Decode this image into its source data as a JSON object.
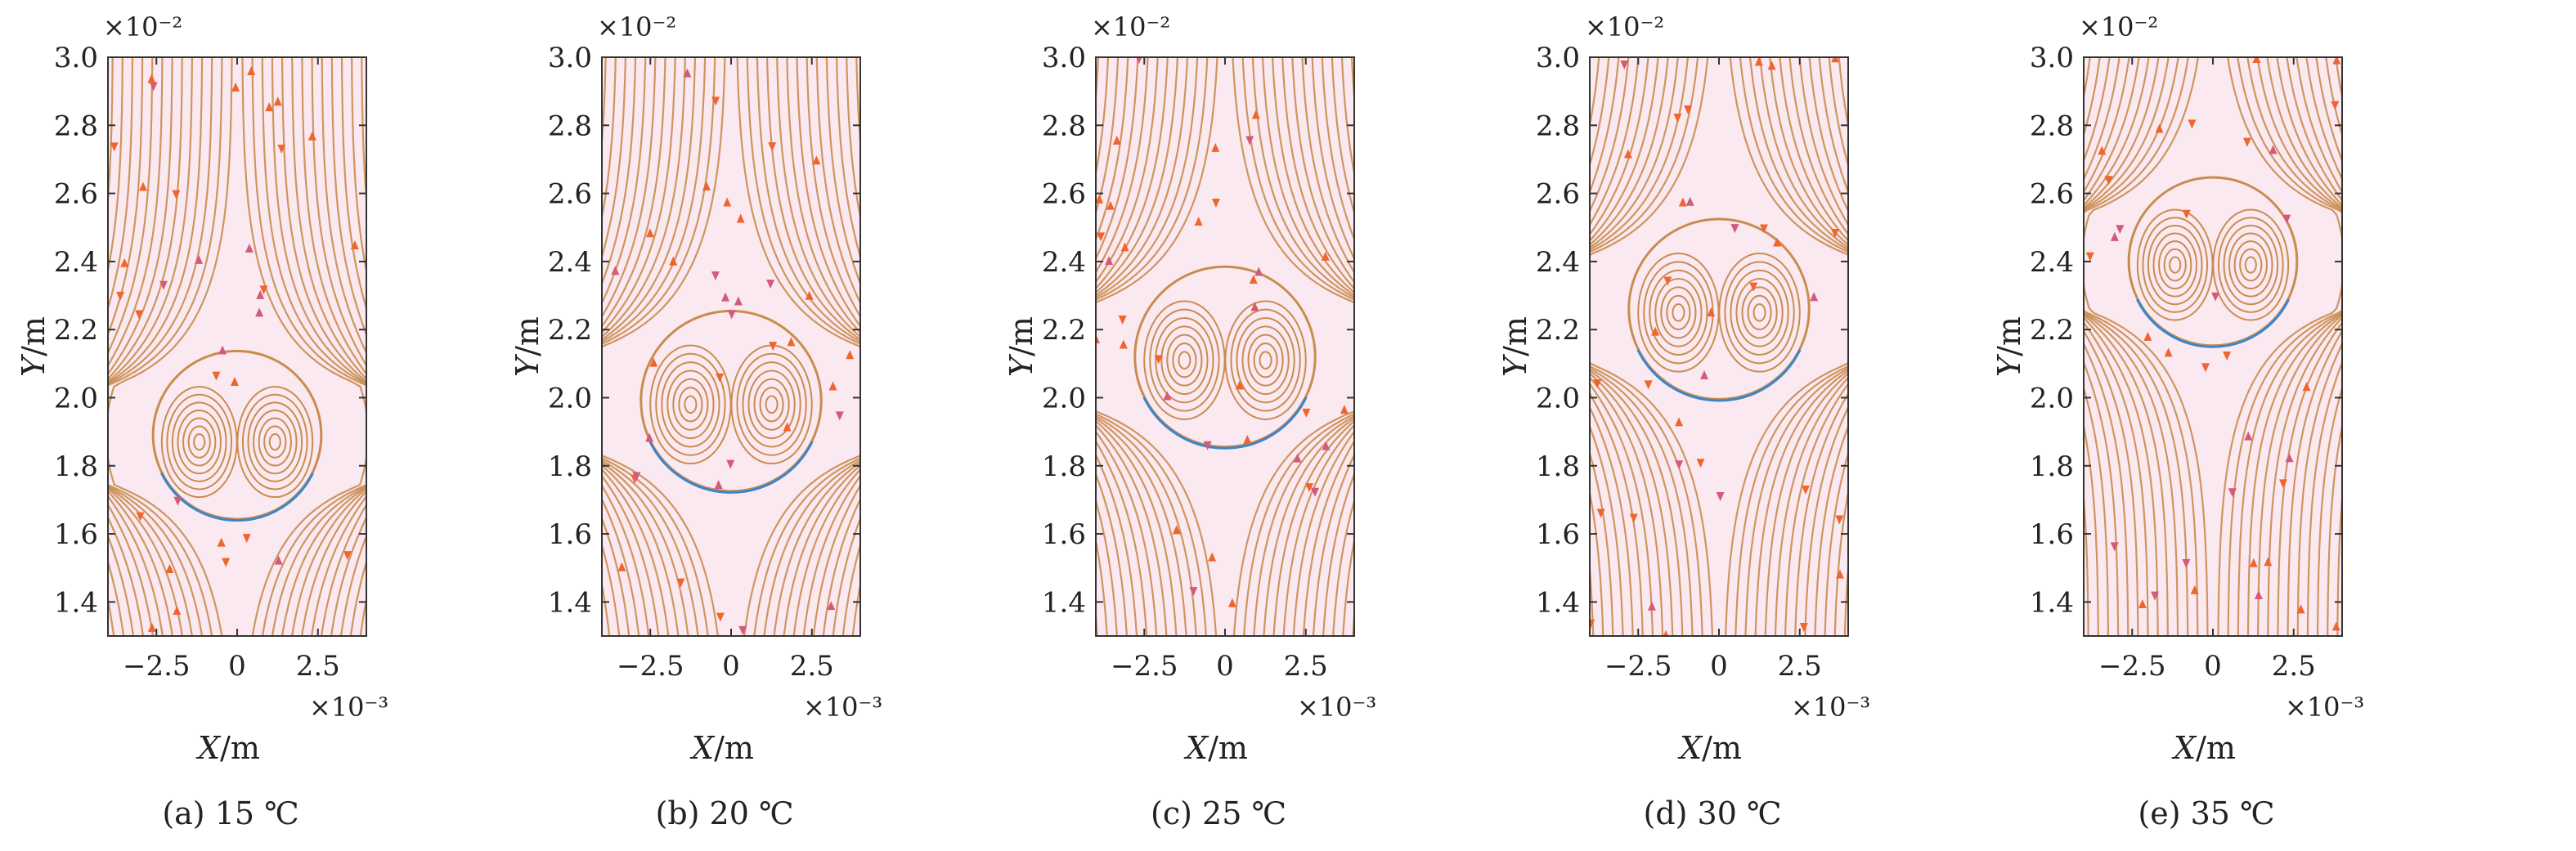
{
  "figure": {
    "panels_count": 5,
    "colors": {
      "streamline": "#c98c4f",
      "arrow": "#f0642e",
      "arrow_alt": "#d45a7a",
      "bubble_edge": "#3a86c8",
      "axis": "#333333",
      "background": "#fbe9f1"
    }
  },
  "chart_data": [
    {
      "type": "streamline",
      "caption": "(a) 15 ℃",
      "xlabel_var": "X",
      "xlabel_unit": "/m",
      "ylabel_var": "Y",
      "ylabel_unit": "/m",
      "x_multiplier": "×10⁻³",
      "y_multiplier": "×10⁻²",
      "xlim": [
        -4.0,
        4.0
      ],
      "ylim": [
        1.3,
        3.0
      ],
      "xticks": [
        -2.5,
        0,
        2.5
      ],
      "xtick_labels": [
        "−2.5",
        "0",
        "2.5"
      ],
      "yticks": [
        1.4,
        1.6,
        1.8,
        2.0,
        2.2,
        2.4,
        2.6,
        2.8,
        3.0
      ],
      "ytick_labels": [
        "1.4",
        "1.6",
        "1.8",
        "2.0",
        "2.2",
        "2.4",
        "2.6",
        "2.8",
        "3.0"
      ],
      "bubble": {
        "center_x": 0,
        "center_y": 1.89,
        "radius_x": 2.8,
        "radius_y": 0.3
      },
      "vortex_centers": [
        {
          "x": -1.8,
          "y": 1.87
        },
        {
          "x": 1.8,
          "y": 1.87
        }
      ]
    },
    {
      "type": "streamline",
      "caption": "(b) 20 ℃",
      "xlabel_var": "X",
      "xlabel_unit": "/m",
      "ylabel_var": "Y",
      "ylabel_unit": "/m",
      "x_multiplier": "×10⁻³",
      "y_multiplier": "×10⁻²",
      "xlim": [
        -4.0,
        4.0
      ],
      "ylim": [
        1.3,
        3.0
      ],
      "xticks": [
        -2.5,
        0,
        2.5
      ],
      "xtick_labels": [
        "−2.5",
        "0",
        "2.5"
      ],
      "yticks": [
        1.4,
        1.6,
        1.8,
        2.0,
        2.2,
        2.4,
        2.6,
        2.8,
        3.0
      ],
      "ytick_labels": [
        "1.4",
        "1.6",
        "1.8",
        "2.0",
        "2.2",
        "2.4",
        "2.6",
        "2.8",
        "3.0"
      ],
      "bubble": {
        "center_x": 0,
        "center_y": 1.99,
        "radius_x": 3.0,
        "radius_y": 0.3
      },
      "vortex_centers": [
        {
          "x": -1.8,
          "y": 1.98
        },
        {
          "x": 1.8,
          "y": 1.98
        }
      ]
    },
    {
      "type": "streamline",
      "caption": "(c) 25 ℃",
      "xlabel_var": "X",
      "xlabel_unit": "/m",
      "ylabel_var": "Y",
      "ylabel_unit": "/m",
      "x_multiplier": "×10⁻³",
      "y_multiplier": "×10⁻²",
      "xlim": [
        -4.0,
        4.0
      ],
      "ylim": [
        1.3,
        3.0
      ],
      "xticks": [
        -2.5,
        0,
        2.5
      ],
      "xtick_labels": [
        "−2.5",
        "0",
        "2.5"
      ],
      "yticks": [
        1.4,
        1.6,
        1.8,
        2.0,
        2.2,
        2.4,
        2.6,
        2.8,
        3.0
      ],
      "ytick_labels": [
        "1.4",
        "1.6",
        "1.8",
        "2.0",
        "2.2",
        "2.4",
        "2.6",
        "2.8",
        "3.0"
      ],
      "bubble": {
        "center_x": 0,
        "center_y": 2.12,
        "radius_x": 3.0,
        "radius_y": 0.3
      },
      "vortex_centers": [
        {
          "x": -1.8,
          "y": 2.11
        },
        {
          "x": 1.8,
          "y": 2.11
        }
      ]
    },
    {
      "type": "streamline",
      "caption": "(d) 30 ℃",
      "xlabel_var": "X",
      "xlabel_unit": "/m",
      "ylabel_var": "Y",
      "ylabel_unit": "/m",
      "x_multiplier": "×10⁻³",
      "y_multiplier": "×10⁻²",
      "xlim": [
        -4.0,
        4.0
      ],
      "ylim": [
        1.3,
        3.0
      ],
      "xticks": [
        -2.5,
        0,
        2.5
      ],
      "xtick_labels": [
        "−2.5",
        "0",
        "2.5"
      ],
      "yticks": [
        1.4,
        1.6,
        1.8,
        2.0,
        2.2,
        2.4,
        2.6,
        2.8,
        3.0
      ],
      "ytick_labels": [
        "1.4",
        "1.6",
        "1.8",
        "2.0",
        "2.2",
        "2.4",
        "2.6",
        "2.8",
        "3.0"
      ],
      "bubble": {
        "center_x": 0,
        "center_y": 2.26,
        "radius_x": 3.0,
        "radius_y": 0.3
      },
      "vortex_centers": [
        {
          "x": -1.8,
          "y": 2.25
        },
        {
          "x": 1.8,
          "y": 2.25
        }
      ]
    },
    {
      "type": "streamline",
      "caption": "(e) 35 ℃",
      "xlabel_var": "X",
      "xlabel_unit": "/m",
      "ylabel_var": "Y",
      "ylabel_unit": "/m",
      "x_multiplier": "×10⁻³",
      "y_multiplier": "×10⁻²",
      "xlim": [
        -4.0,
        4.0
      ],
      "ylim": [
        1.3,
        3.0
      ],
      "xticks": [
        -2.5,
        0,
        2.5
      ],
      "xtick_labels": [
        "−2.5",
        "0",
        "2.5"
      ],
      "yticks": [
        1.4,
        1.6,
        1.8,
        2.0,
        2.2,
        2.4,
        2.6,
        2.8,
        3.0
      ],
      "ytick_labels": [
        "1.4",
        "1.6",
        "1.8",
        "2.0",
        "2.2",
        "2.4",
        "2.6",
        "2.8",
        "3.0"
      ],
      "bubble": {
        "center_x": 0,
        "center_y": 2.4,
        "radius_x": 2.8,
        "radius_y": 0.29
      },
      "vortex_centers": [
        {
          "x": -1.8,
          "y": 2.39
        },
        {
          "x": 1.8,
          "y": 2.39
        }
      ]
    }
  ]
}
